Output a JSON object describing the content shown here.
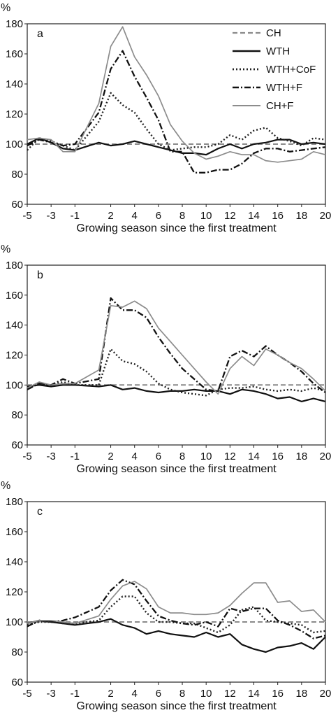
{
  "chart_data": [
    {
      "type": "line",
      "panel_label": "a",
      "ylabel": "%",
      "xlabel": "Growing season since the first treatment",
      "ylim": [
        60,
        180
      ],
      "yticks": [
        60,
        80,
        100,
        120,
        140,
        160,
        180
      ],
      "xlim": [
        -5,
        20
      ],
      "xticks": [
        -5,
        -3,
        -1,
        2,
        4,
        6,
        8,
        10,
        12,
        14,
        16,
        18,
        20
      ],
      "x": [
        -5,
        -4,
        -3,
        -2,
        -1,
        1,
        2,
        3,
        4,
        5,
        6,
        7,
        8,
        9,
        10,
        11,
        12,
        13,
        14,
        15,
        16,
        17,
        18,
        19,
        20
      ],
      "legend": {
        "position": "top-right",
        "entries": [
          "CH",
          "WTH",
          "WTH+CoF",
          "WTH+F",
          "CH+F"
        ]
      },
      "series": [
        {
          "name": "CH",
          "style": "dashed-gray",
          "values": [
            100,
            100,
            100,
            100,
            100,
            100,
            100,
            100,
            100,
            100,
            100,
            100,
            100,
            100,
            100,
            100,
            100,
            100,
            100,
            100,
            100,
            100,
            100,
            100,
            100
          ]
        },
        {
          "name": "WTH",
          "style": "solid-black",
          "values": [
            100,
            104,
            101,
            97,
            96,
            101,
            99,
            100,
            102,
            100,
            98,
            96,
            94,
            94,
            93,
            97,
            100,
            97,
            100,
            101,
            103,
            103,
            100,
            101,
            100
          ]
        },
        {
          "name": "WTH+CoF",
          "style": "dotted-black",
          "values": [
            96,
            104,
            102,
            99,
            96,
            115,
            134,
            126,
            121,
            110,
            100,
            96,
            97,
            98,
            98,
            100,
            106,
            103,
            109,
            111,
            104,
            102,
            99,
            104,
            103
          ]
        },
        {
          "name": "WTH+F",
          "style": "dashdot-black",
          "values": [
            99,
            103,
            101,
            99,
            100,
            121,
            150,
            162,
            145,
            131,
            116,
            95,
            95,
            81,
            81,
            83,
            83,
            87,
            94,
            97,
            97,
            95,
            96,
            97,
            98
          ]
        },
        {
          "name": "CH+F",
          "style": "solid-gray",
          "values": [
            103,
            104,
            103,
            95,
            95,
            127,
            165,
            178,
            158,
            146,
            132,
            113,
            102,
            94,
            90,
            92,
            95,
            93,
            93,
            89,
            88,
            89,
            90,
            95,
            93
          ]
        }
      ]
    },
    {
      "type": "line",
      "panel_label": "b",
      "ylabel": "%",
      "xlabel": "Growing season since the first treatment",
      "ylim": [
        60,
        180
      ],
      "yticks": [
        60,
        80,
        100,
        120,
        140,
        160,
        180
      ],
      "xlim": [
        -5,
        20
      ],
      "xticks": [
        -5,
        -3,
        -1,
        2,
        4,
        6,
        8,
        10,
        12,
        14,
        16,
        18,
        20
      ],
      "x": [
        -5,
        -4,
        -3,
        -2,
        -1,
        1,
        2,
        3,
        4,
        5,
        6,
        7,
        8,
        9,
        10,
        11,
        12,
        13,
        14,
        15,
        16,
        17,
        18,
        19,
        20
      ],
      "series": [
        {
          "name": "CH",
          "style": "dashed-gray",
          "values": [
            100,
            100,
            100,
            100,
            100,
            100,
            100,
            100,
            100,
            100,
            100,
            100,
            100,
            100,
            100,
            100,
            100,
            100,
            100,
            100,
            100,
            100,
            100,
            100,
            100
          ]
        },
        {
          "name": "WTH",
          "style": "solid-black",
          "values": [
            99,
            100,
            99,
            100,
            100,
            99,
            100,
            97,
            98,
            96,
            95,
            96,
            96,
            97,
            96,
            96,
            94,
            97,
            96,
            94,
            91,
            92,
            89,
            91,
            89
          ]
        },
        {
          "name": "WTH+CoF",
          "style": "dotted-black",
          "values": [
            98,
            101,
            100,
            102,
            100,
            100,
            124,
            116,
            114,
            109,
            101,
            97,
            95,
            94,
            93,
            97,
            98,
            98,
            99,
            97,
            96,
            97,
            96,
            98,
            96
          ]
        },
        {
          "name": "WTH+F",
          "style": "dashdot-black",
          "values": [
            97,
            101,
            100,
            104,
            101,
            104,
            158,
            150,
            150,
            145,
            132,
            121,
            111,
            104,
            97,
            96,
            119,
            123,
            119,
            126,
            120,
            115,
            109,
            101,
            95
          ]
        },
        {
          "name": "CH+F",
          "style": "solid-gray",
          "values": [
            98,
            102,
            100,
            101,
            101,
            110,
            153,
            152,
            156,
            151,
            138,
            129,
            120,
            111,
            102,
            94,
            111,
            119,
            113,
            124,
            120,
            115,
            111,
            104,
            96
          ]
        }
      ]
    },
    {
      "type": "line",
      "panel_label": "c",
      "ylabel": "%",
      "xlabel": "Growing season since the first treatment",
      "ylim": [
        60,
        180
      ],
      "yticks": [
        60,
        80,
        100,
        120,
        140,
        160,
        180
      ],
      "xlim": [
        -5,
        20
      ],
      "xticks": [
        -5,
        -3,
        -1,
        2,
        4,
        6,
        8,
        10,
        12,
        14,
        16,
        18,
        20
      ],
      "x": [
        -5,
        -4,
        -3,
        -2,
        -1,
        1,
        2,
        3,
        4,
        5,
        6,
        7,
        8,
        9,
        10,
        11,
        12,
        13,
        14,
        15,
        16,
        17,
        18,
        19,
        20
      ],
      "series": [
        {
          "name": "CH",
          "style": "dashed-gray",
          "values": [
            100,
            100,
            100,
            100,
            100,
            100,
            100,
            100,
            100,
            100,
            100,
            100,
            100,
            100,
            100,
            100,
            100,
            100,
            100,
            100,
            100,
            100,
            100,
            100,
            100
          ]
        },
        {
          "name": "WTH",
          "style": "solid-black",
          "values": [
            99,
            101,
            100,
            99,
            98,
            100,
            102,
            98,
            96,
            92,
            94,
            92,
            91,
            90,
            93,
            90,
            92,
            85,
            82,
            80,
            83,
            84,
            86,
            82,
            90
          ]
        },
        {
          "name": "WTH+CoF",
          "style": "dotted-black",
          "values": [
            98,
            100,
            100,
            99,
            99,
            101,
            110,
            117,
            117,
            106,
            100,
            100,
            99,
            99,
            96,
            93,
            98,
            108,
            110,
            101,
            100,
            99,
            98,
            93,
            94
          ]
        },
        {
          "name": "WTH+F",
          "style": "dashdot-black",
          "values": [
            97,
            101,
            100,
            101,
            103,
            110,
            121,
            128,
            125,
            114,
            104,
            101,
            99,
            98,
            100,
            97,
            109,
            107,
            109,
            109,
            101,
            98,
            94,
            89,
            91
          ]
        },
        {
          "name": "CH+F",
          "style": "solid-gray",
          "values": [
            99,
            101,
            101,
            100,
            99,
            104,
            115,
            124,
            127,
            122,
            110,
            106,
            106,
            105,
            105,
            106,
            111,
            119,
            126,
            126,
            113,
            114,
            107,
            108,
            100
          ]
        }
      ]
    }
  ]
}
